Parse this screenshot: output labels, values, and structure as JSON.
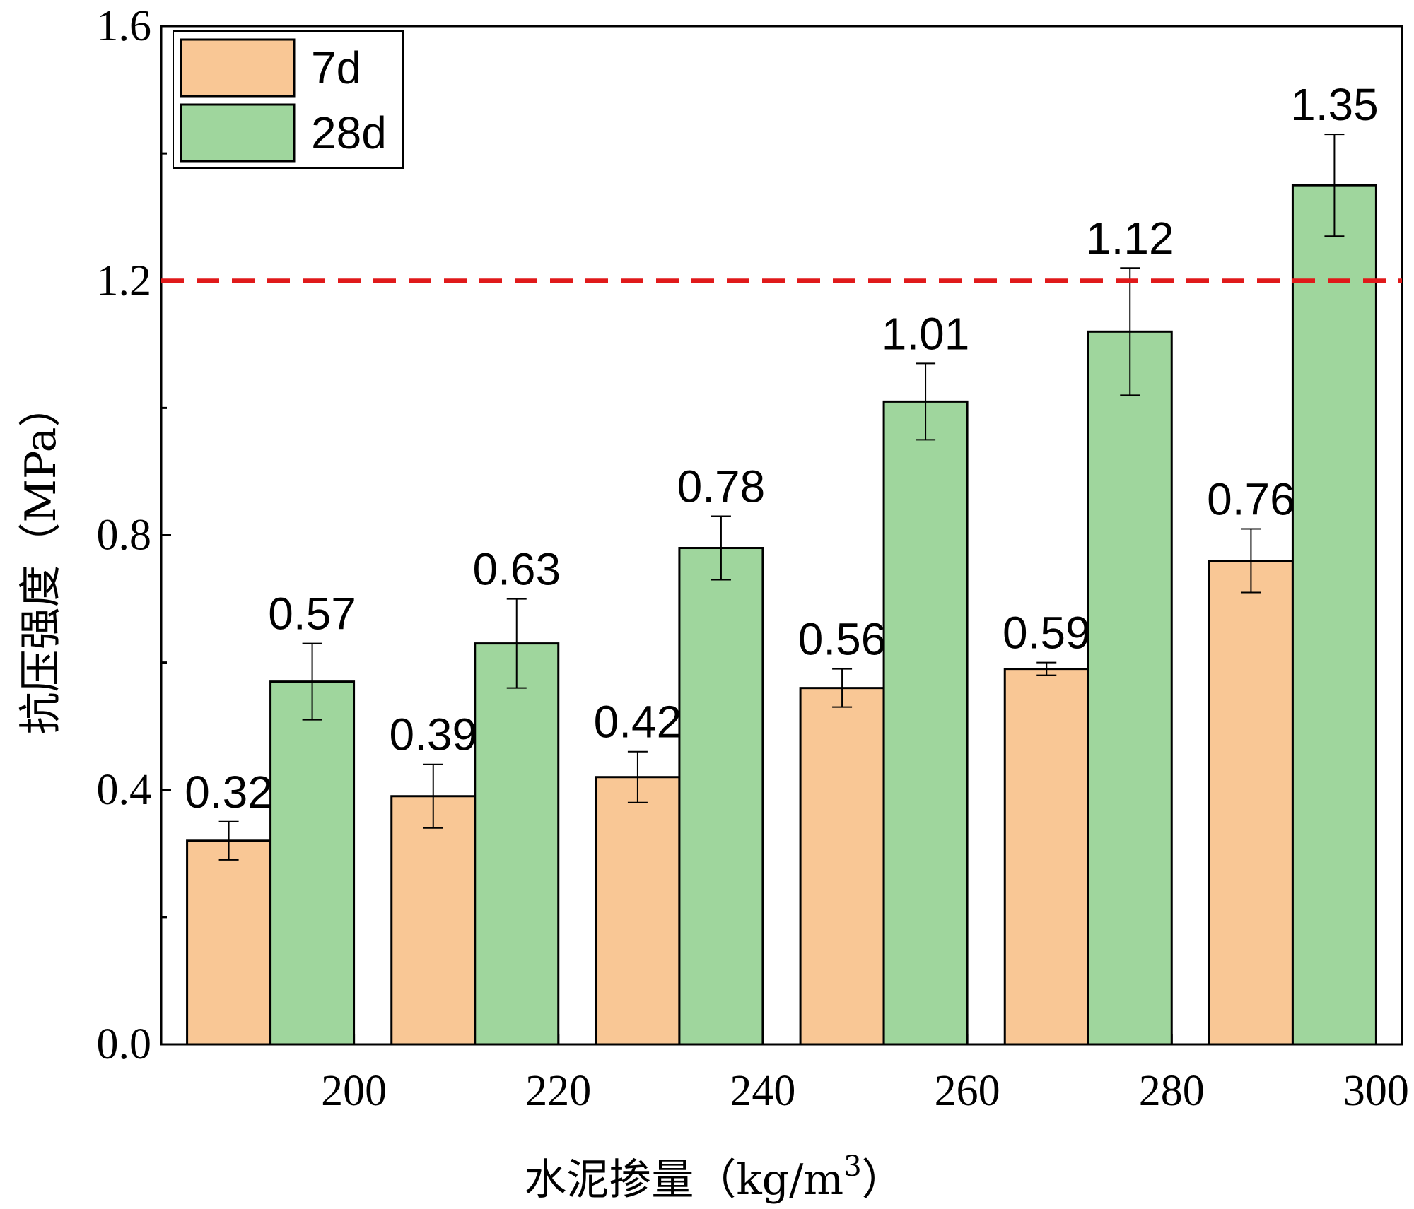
{
  "chart_data": {
    "type": "bar",
    "categories": [
      "200",
      "220",
      "240",
      "260",
      "280",
      "300"
    ],
    "series": [
      {
        "name": "7d",
        "color": "#F9C795",
        "values": [
          0.32,
          0.39,
          0.42,
          0.56,
          0.59,
          0.76
        ],
        "errors": [
          0.03,
          0.05,
          0.04,
          0.03,
          0.01,
          0.05
        ]
      },
      {
        "name": "28d",
        "color": "#9FD69D",
        "values": [
          0.57,
          0.63,
          0.78,
          1.01,
          1.12,
          1.35
        ],
        "errors": [
          0.06,
          0.07,
          0.05,
          0.06,
          0.1,
          0.08
        ]
      }
    ],
    "value_labels": {
      "7d": [
        "0.32",
        "0.39",
        "0.42",
        "0.56",
        "0.59",
        "0.76"
      ],
      "28d": [
        "0.57",
        "0.63",
        "0.78",
        "1.01",
        "1.12",
        "1.35"
      ]
    },
    "xlabel": "水泥掺量（kg/m",
    "xlabel_sup": "3",
    "xlabel_end": "）",
    "ylabel": "抗压强度（MPa）",
    "ylim": [
      0,
      1.6
    ],
    "yticks": [
      "0.0",
      "0.4",
      "0.8",
      "1.2",
      "1.6"
    ],
    "reference_line": {
      "y": 1.2,
      "color": "#E0191A",
      "style": "dashed"
    },
    "legend": {
      "position": "top-left",
      "entries": [
        "7d",
        "28d"
      ]
    },
    "grid": false
  }
}
